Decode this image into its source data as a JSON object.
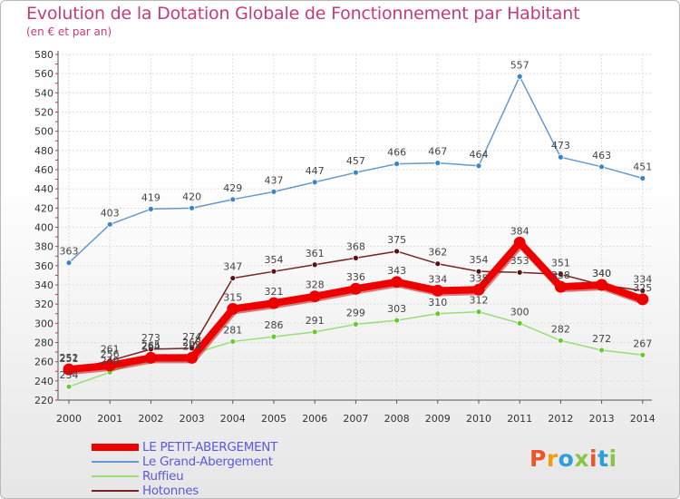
{
  "header": {
    "title": "Evolution de la Dotation Globale de Fonctionnement par Habitant",
    "subtitle": "(en € et par an)"
  },
  "logo": {
    "text": "Proxiti",
    "letters": [
      "P",
      "r",
      "o",
      "x",
      "i",
      "t",
      "i"
    ],
    "colors": [
      "#e8562a",
      "#f39c12",
      "#2b9fd9",
      "#8bc34a",
      "#e8562a",
      "#2b9fd9",
      "#8bc34a"
    ]
  },
  "chart_data": {
    "type": "line",
    "title": "Evolution de la Dotation Globale de Fonctionnement par Habitant",
    "subtitle": "(en € et par an)",
    "xlabel": "",
    "ylabel": "",
    "x": [
      "2000",
      "2001",
      "2002",
      "2003",
      "2004",
      "2005",
      "2006",
      "2007",
      "2008",
      "2009",
      "2010",
      "2011",
      "2012",
      "2013",
      "2014"
    ],
    "ylim": [
      220,
      580
    ],
    "yticks": [
      220,
      240,
      260,
      280,
      300,
      320,
      340,
      360,
      380,
      400,
      420,
      440,
      460,
      480,
      500,
      520,
      540,
      560,
      580
    ],
    "grid": true,
    "legend_position": "bottom-left",
    "series": [
      {
        "name": "LE PETIT-ABERGEMENT",
        "color": "#ee0000",
        "values": [
          252,
          256,
          264,
          264,
          315,
          321,
          328,
          336,
          343,
          334,
          335,
          384,
          338,
          340,
          325
        ]
      },
      {
        "name": "Le Grand-Abergement",
        "color": "#6699cc",
        "values": [
          363,
          403,
          419,
          420,
          429,
          437,
          447,
          457,
          466,
          467,
          464,
          557,
          473,
          463,
          451
        ]
      },
      {
        "name": "Ruffieu",
        "color": "#99dd77",
        "values": [
          234,
          249,
          265,
          268,
          281,
          286,
          291,
          299,
          303,
          310,
          312,
          300,
          282,
          272,
          267
        ]
      },
      {
        "name": "Hotonnes",
        "color": "#772222",
        "values": [
          251,
          261,
          273,
          274,
          347,
          354,
          361,
          368,
          375,
          362,
          354,
          353,
          351,
          340,
          334
        ]
      }
    ]
  }
}
